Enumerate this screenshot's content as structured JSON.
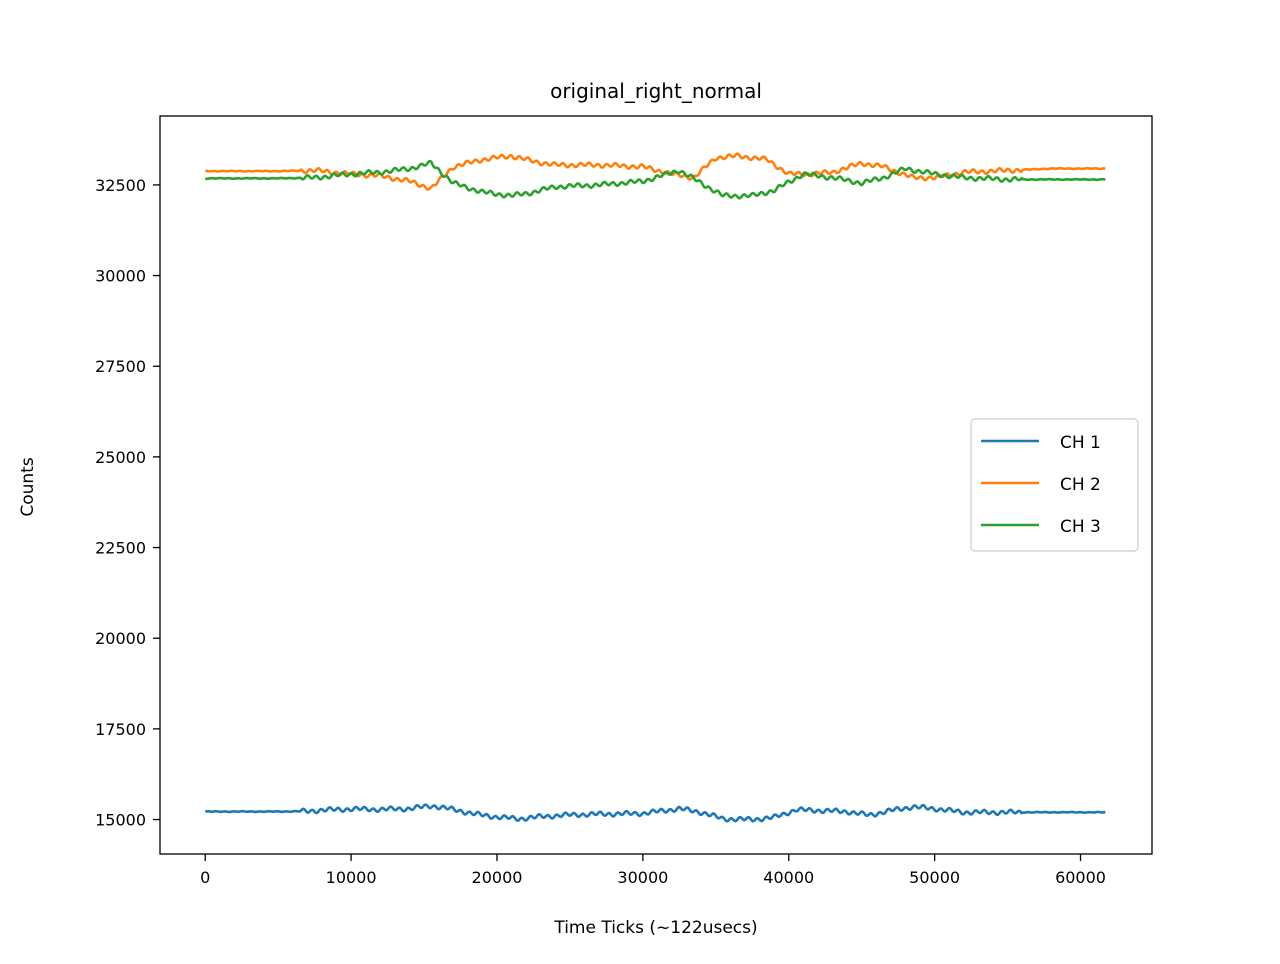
{
  "chart_data": {
    "type": "line",
    "title": "original_right_normal",
    "xlabel": "Time Ticks (~122usecs)",
    "ylabel": "Counts",
    "xlim": [
      -3100,
      64900
    ],
    "ylim": [
      14050,
      34400
    ],
    "xticks": [
      0,
      10000,
      20000,
      30000,
      40000,
      50000,
      60000
    ],
    "yticks": [
      15000,
      17500,
      20000,
      22500,
      25000,
      27500,
      30000,
      32500
    ],
    "grid": false,
    "legend_position": "center-right",
    "series": [
      {
        "name": "CH 1",
        "color": "#1f77b4",
        "x": [
          0,
          5000,
          7000,
          8000,
          10000,
          12000,
          14000,
          15500,
          17000,
          18500,
          20000,
          21500,
          23000,
          25000,
          27000,
          30000,
          32500,
          34000,
          35500,
          37500,
          39000,
          40500,
          42000,
          44000,
          45500,
          47000,
          48500,
          50000,
          52000,
          55000,
          58000,
          61700
        ],
        "y": [
          15220,
          15220,
          15230,
          15260,
          15290,
          15280,
          15300,
          15380,
          15280,
          15150,
          15070,
          15020,
          15080,
          15130,
          15150,
          15170,
          15300,
          15200,
          15020,
          15000,
          15060,
          15270,
          15250,
          15220,
          15120,
          15250,
          15350,
          15300,
          15200,
          15200,
          15200,
          15200
        ]
      },
      {
        "name": "CH 2",
        "color": "#ff7f0e",
        "x": [
          0,
          5000,
          7500,
          10000,
          12000,
          14000,
          15500,
          17000,
          19000,
          21000,
          22500,
          24000,
          27000,
          30000,
          32000,
          33500,
          35000,
          36500,
          38500,
          40000,
          41500,
          43000,
          45000,
          46500,
          48500,
          50000,
          52000,
          55000,
          58000,
          61700
        ],
        "y": [
          32880,
          32880,
          32900,
          32800,
          32750,
          32600,
          32400,
          33000,
          33200,
          33300,
          33150,
          33050,
          33050,
          33000,
          32800,
          32700,
          33250,
          33300,
          33200,
          32800,
          32800,
          32850,
          33100,
          33000,
          32700,
          32700,
          32850,
          32900,
          32950,
          32950
        ]
      },
      {
        "name": "CH 3",
        "color": "#2ca02c",
        "x": [
          0,
          5000,
          7500,
          10000,
          12000,
          14000,
          15500,
          17000,
          19000,
          21000,
          22500,
          24000,
          27000,
          30000,
          32500,
          34000,
          35500,
          37500,
          39000,
          41000,
          43000,
          45000,
          46500,
          48000,
          50000,
          52000,
          55000,
          58000,
          61700
        ],
        "y": [
          32680,
          32680,
          32700,
          32800,
          32850,
          32950,
          33100,
          32550,
          32300,
          32200,
          32300,
          32450,
          32500,
          32600,
          32900,
          32550,
          32200,
          32200,
          32350,
          32800,
          32700,
          32550,
          32700,
          32950,
          32800,
          32700,
          32650,
          32650,
          32650
        ]
      }
    ]
  }
}
